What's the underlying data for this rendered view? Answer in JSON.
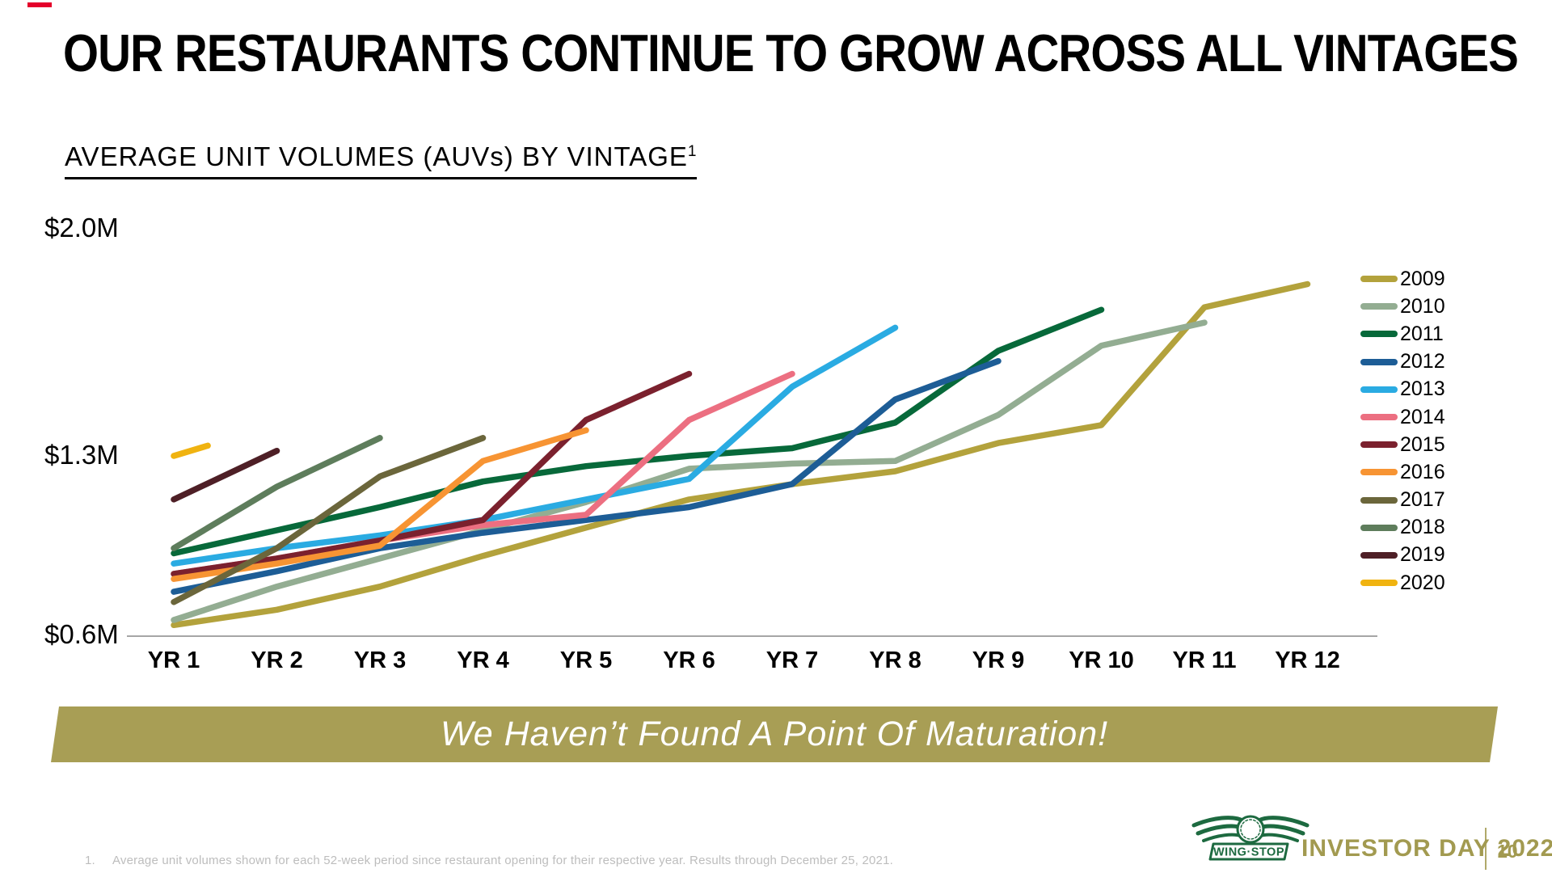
{
  "slide": {
    "title": "OUR RESTAURANTS CONTINUE TO GROW ACROSS ALL VINTAGES",
    "subtitle": "AVERAGE UNIT VOLUMES (AUVs) BY VINTAGE",
    "subtitle_superscript": "1",
    "banner_text": "We Haven’t Found A Point Of Maturation!",
    "banner_color": "#a89e55",
    "accent_red": "#e4002b",
    "footnote_number": "1.",
    "footnote_text": "Average unit volumes shown for each 52-week period since restaurant opening for their respective year. Results through December 25, 2021.",
    "footer": {
      "brand": "WING·STOP",
      "event": "INVESTOR DAY 2022",
      "page": "10",
      "color": "#a29a50",
      "logo_green": "#1d6a40"
    }
  },
  "chart_data": {
    "type": "line",
    "title": "AVERAGE UNIT VOLUMES (AUVs) BY VINTAGE",
    "unit": "$M",
    "grid": false,
    "legend_position": "right",
    "axis_color": "#a6a6a6",
    "ylim": [
      0.6,
      2.0
    ],
    "y_tick_labels": [
      "$2.0M",
      "$1.3M",
      "$0.6M"
    ],
    "y_tick_values": [
      2.0,
      1.3,
      0.6
    ],
    "x_labels": [
      "YR 1",
      "YR 2",
      "YR 3",
      "YR 4",
      "YR 5",
      "YR 6",
      "YR 7",
      "YR 8",
      "YR 9",
      "YR 10",
      "YR 11",
      "YR 12"
    ],
    "series": [
      {
        "name": "2009",
        "color": "#b3a23c",
        "values": [
          0.64,
          0.7,
          0.79,
          0.91,
          1.02,
          1.13,
          1.19,
          1.24,
          1.35,
          1.42,
          1.88,
          1.97
        ]
      },
      {
        "name": "2010",
        "color": "#93ad92",
        "values": [
          0.66,
          0.79,
          0.9,
          1.01,
          1.12,
          1.25,
          1.27,
          1.28,
          1.46,
          1.73,
          1.82
        ]
      },
      {
        "name": "2011",
        "color": "#07693a",
        "values": [
          0.92,
          1.01,
          1.1,
          1.2,
          1.26,
          1.3,
          1.33,
          1.43,
          1.71,
          1.87
        ]
      },
      {
        "name": "2012",
        "color": "#1d5d96",
        "values": [
          0.77,
          0.85,
          0.94,
          1.0,
          1.05,
          1.1,
          1.19,
          1.52,
          1.67
        ]
      },
      {
        "name": "2013",
        "color": "#2aabe2",
        "values": [
          0.88,
          0.94,
          0.99,
          1.05,
          1.13,
          1.21,
          1.57,
          1.8
        ]
      },
      {
        "name": "2014",
        "color": "#ec6f81",
        "values": [
          0.84,
          0.9,
          0.97,
          1.03,
          1.07,
          1.44,
          1.62
        ]
      },
      {
        "name": "2015",
        "color": "#7b212e",
        "values": [
          0.84,
          0.9,
          0.97,
          1.05,
          1.44,
          1.62
        ]
      },
      {
        "name": "2016",
        "color": "#f79433",
        "values": [
          0.82,
          0.88,
          0.95,
          1.28,
          1.4
        ]
      },
      {
        "name": "2017",
        "color": "#6b663b",
        "values": [
          0.73,
          0.94,
          1.22,
          1.37
        ]
      },
      {
        "name": "2018",
        "color": "#5e7d5c",
        "values": [
          0.94,
          1.18,
          1.37
        ]
      },
      {
        "name": "2019",
        "color": "#4e1f26",
        "values": [
          1.13,
          1.32
        ]
      },
      {
        "name": "2020",
        "color": "#f0b310",
        "x": [
          1,
          1.33
        ],
        "values": [
          1.3,
          1.34
        ]
      }
    ]
  }
}
